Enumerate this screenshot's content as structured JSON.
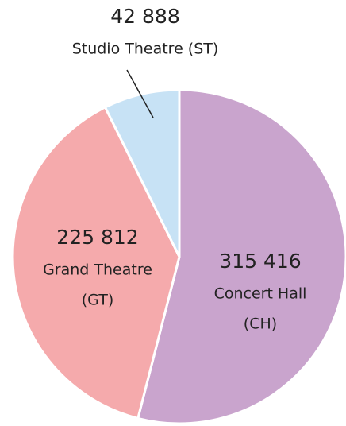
{
  "chart_data": {
    "type": "pie",
    "categories": [
      [
        "Concert Hall",
        "(CH)"
      ],
      [
        "Grand Theatre",
        "(GT)"
      ],
      [
        "Studio Theatre (ST)"
      ]
    ],
    "values": [
      315416,
      225812,
      42888
    ],
    "value_labels": [
      "315 416",
      "225 812",
      "42 888"
    ],
    "colors": [
      "#c9a4cd",
      "#f5aaac",
      "#c7e2f5"
    ]
  }
}
